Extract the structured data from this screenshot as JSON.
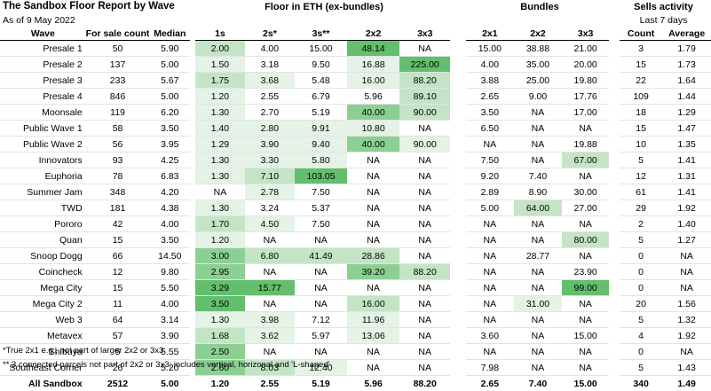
{
  "title": "The Sandbox Floor Report by Wave",
  "subtitle": "As of 9 May 2022",
  "groups": {
    "floor": "Floor in ETH (ex-bundles)",
    "bundles": "Bundles",
    "sells": "Sells activity",
    "sells_sub": "Last 7 days"
  },
  "columns": [
    "Wave",
    "For sale count",
    "Median",
    "1s",
    "2s*",
    "3s**",
    "2x2",
    "3x3",
    "2x1",
    "2x2",
    "3x3",
    "Count",
    "Average"
  ],
  "rows": [
    {
      "cells": [
        "Presale 1",
        "50",
        "5.90",
        "2.00",
        "4.00",
        "15.00",
        "48.14",
        "NA",
        "15.00",
        "38.88",
        "21.00",
        "3",
        "1.79"
      ],
      "heat": {
        "3": 2,
        "6": 4
      }
    },
    {
      "cells": [
        "Presale 2",
        "137",
        "5.00",
        "1.50",
        "3.18",
        "9.50",
        "16.88",
        "225.00",
        "4.00",
        "35.00",
        "20.00",
        "15",
        "1.73"
      ],
      "heat": {
        "3": 1,
        "6": 1,
        "7": 4
      }
    },
    {
      "cells": [
        "Presale 3",
        "233",
        "5.67",
        "1.75",
        "3.68",
        "5.48",
        "16.00",
        "88.20",
        "3.88",
        "25.00",
        "19.80",
        "22",
        "1.64"
      ],
      "heat": {
        "3": 2,
        "4": 1,
        "6": 1,
        "7": 2
      }
    },
    {
      "cells": [
        "Presale 4",
        "846",
        "5.00",
        "1.20",
        "2.55",
        "6.79",
        "5.96",
        "89.10",
        "2.65",
        "9.00",
        "17.76",
        "109",
        "1.44"
      ],
      "heat": {
        "3": 1,
        "7": 2
      }
    },
    {
      "cells": [
        "Moonsale",
        "119",
        "6.20",
        "1.30",
        "2.70",
        "5.19",
        "40.00",
        "90.00",
        "3.50",
        "NA",
        "17.00",
        "18",
        "1.29"
      ],
      "heat": {
        "3": 1,
        "6": 3,
        "7": 2
      }
    },
    {
      "cells": [
        "Public Wave 1",
        "58",
        "3.50",
        "1.40",
        "2.80",
        "9.91",
        "10.80",
        "NA",
        "6.50",
        "NA",
        "NA",
        "15",
        "1.47"
      ],
      "heat": {
        "3": 1,
        "4": 1,
        "5": 1,
        "6": 1
      }
    },
    {
      "cells": [
        "Public Wave 2",
        "56",
        "3.95",
        "1.29",
        "3.90",
        "9.40",
        "40.00",
        "90.00",
        "NA",
        "NA",
        "19.88",
        "10",
        "1.35"
      ],
      "heat": {
        "3": 1,
        "4": 1,
        "5": 1,
        "6": 3,
        "7": 1
      }
    },
    {
      "cells": [
        "Innovators",
        "93",
        "4.25",
        "1.30",
        "3.30",
        "5.80",
        "NA",
        "NA",
        "7.50",
        "NA",
        "67.00",
        "5",
        "1.41"
      ],
      "heat": {
        "3": 1,
        "4": 1,
        "5": 1,
        "10": 2
      }
    },
    {
      "cells": [
        "Euphoria",
        "78",
        "6.83",
        "1.30",
        "7.10",
        "103.05",
        "NA",
        "NA",
        "9.20",
        "7.40",
        "NA",
        "12",
        "1.31"
      ],
      "heat": {
        "3": 1,
        "4": 2,
        "5": 4
      }
    },
    {
      "cells": [
        "Summer Jam",
        "348",
        "4.20",
        "NA",
        "2.78",
        "7.50",
        "NA",
        "NA",
        "2.89",
        "8.90",
        "30.00",
        "61",
        "1.41"
      ],
      "heat": {
        "4": 1
      }
    },
    {
      "cells": [
        "TWD",
        "181",
        "4.38",
        "1.30",
        "3.24",
        "5.37",
        "NA",
        "NA",
        "5.00",
        "64.00",
        "27.00",
        "29",
        "1.92"
      ],
      "heat": {
        "3": 1,
        "9": 2
      }
    },
    {
      "cells": [
        "Pororo",
        "42",
        "4.00",
        "1.70",
        "4.50",
        "7.50",
        "NA",
        "NA",
        "NA",
        "NA",
        "NA",
        "2",
        "1.40"
      ],
      "heat": {
        "3": 2,
        "4": 1
      }
    },
    {
      "cells": [
        "Quan",
        "15",
        "3.50",
        "1.20",
        "NA",
        "NA",
        "NA",
        "NA",
        "NA",
        "NA",
        "80.00",
        "5",
        "1.27"
      ],
      "heat": {
        "3": 1,
        "10": 2
      }
    },
    {
      "cells": [
        "Snoop Dogg",
        "66",
        "14.50",
        "3.00",
        "6.80",
        "41.49",
        "28.86",
        "NA",
        "NA",
        "28.77",
        "NA",
        "0",
        "NA"
      ],
      "heat": {
        "3": 3,
        "4": 2,
        "5": 2,
        "6": 2
      }
    },
    {
      "cells": [
        "Coincheck",
        "12",
        "9.80",
        "2.95",
        "NA",
        "NA",
        "39.20",
        "88.20",
        "NA",
        "NA",
        "23.90",
        "0",
        "NA"
      ],
      "heat": {
        "3": 3,
        "6": 3,
        "7": 2
      }
    },
    {
      "cells": [
        "Mega City",
        "15",
        "5.50",
        "3.29",
        "15.77",
        "NA",
        "NA",
        "NA",
        "NA",
        "NA",
        "99.00",
        "0",
        "NA"
      ],
      "heat": {
        "3": 4,
        "4": 4,
        "10": 4
      }
    },
    {
      "cells": [
        "Mega City 2",
        "11",
        "4.00",
        "3.50",
        "NA",
        "NA",
        "16.00",
        "NA",
        "NA",
        "31.00",
        "NA",
        "20",
        "1.56"
      ],
      "heat": {
        "3": 4,
        "6": 2,
        "9": 1
      }
    },
    {
      "cells": [
        "Web 3",
        "64",
        "3.14",
        "1.30",
        "3.98",
        "7.12",
        "11.96",
        "NA",
        "NA",
        "NA",
        "NA",
        "5",
        "1.32"
      ],
      "heat": {
        "3": 1,
        "4": 1,
        "6": 1
      }
    },
    {
      "cells": [
        "Metavex",
        "57",
        "3.90",
        "1.68",
        "3.62",
        "5.97",
        "13.06",
        "NA",
        "3.60",
        "NA",
        "15.00",
        "4",
        "1.92"
      ],
      "heat": {
        "3": 2,
        "4": 1,
        "6": 1
      }
    },
    {
      "cells": [
        "Shibuya",
        "5",
        "5.55",
        "2.50",
        "NA",
        "NA",
        "NA",
        "NA",
        "NA",
        "NA",
        "NA",
        "0",
        "NA"
      ],
      "heat": {
        "3": 3
      }
    },
    {
      "cells": [
        "Southeast Corner",
        "26",
        "5.20",
        "2.60",
        "8.03",
        "12.40",
        "NA",
        "NA",
        "7.98",
        "NA",
        "NA",
        "5",
        "1.43"
      ],
      "heat": {
        "3": 3,
        "4": 2,
        "5": 1
      }
    }
  ],
  "total": [
    "All Sandbox",
    "2512",
    "5.00",
    "1.20",
    "2.55",
    "5.19",
    "5.96",
    "88.20",
    "2.65",
    "7.40",
    "15.00",
    "340",
    "1.49"
  ],
  "footnotes": [
    "*True 2x1 e.g., not part of larger 2x2 or 3x3",
    "** 3 connected parcels not part of 2x2 or 3x3; includes vertical, horizonal and 'L-shaped'"
  ]
}
